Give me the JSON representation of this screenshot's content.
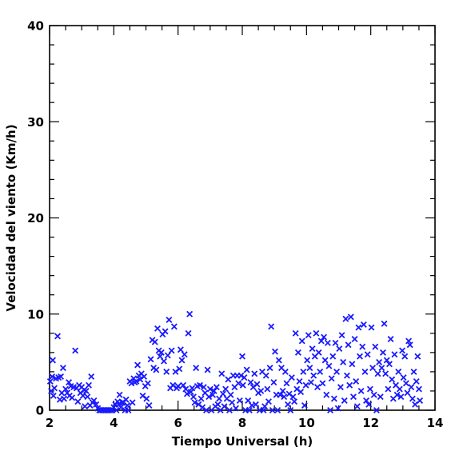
{
  "chart_data": {
    "type": "scatter",
    "xlabel": "Tiempo Universal (h)",
    "ylabel": "Velocidad del viento (Km/h)",
    "xlim": [
      2,
      14
    ],
    "ylim": [
      0,
      40
    ],
    "xticks": [
      2,
      4,
      6,
      8,
      10,
      12,
      14
    ],
    "yticks": [
      0,
      10,
      20,
      30,
      40
    ],
    "x_minor_step": 0.5,
    "y_minor_step": 2,
    "grid": false,
    "marker": "x",
    "color": "#1a1aff",
    "series": [
      {
        "points": [
          [
            2.02,
            3.0
          ],
          [
            2.05,
            2.0
          ],
          [
            2.08,
            3.5
          ],
          [
            2.1,
            5.2
          ],
          [
            2.12,
            1.5
          ],
          [
            2.15,
            2.3
          ],
          [
            2.2,
            3.3
          ],
          [
            2.25,
            7.7
          ],
          [
            2.28,
            3.4
          ],
          [
            2.32,
            1.1
          ],
          [
            2.35,
            3.5
          ],
          [
            2.38,
            1.8
          ],
          [
            2.42,
            4.4
          ],
          [
            2.45,
            1.2
          ],
          [
            2.5,
            2.2
          ],
          [
            2.55,
            1.8
          ],
          [
            2.6,
            2.9
          ],
          [
            2.62,
            1.5
          ],
          [
            2.66,
            2.5
          ],
          [
            2.7,
            1.3
          ],
          [
            2.75,
            2.4
          ],
          [
            2.8,
            6.2
          ],
          [
            2.84,
            2.3
          ],
          [
            2.88,
            0.9
          ],
          [
            2.92,
            2.6
          ],
          [
            2.96,
            1.8
          ],
          [
            3.0,
            2.4
          ],
          [
            3.04,
            1.5
          ],
          [
            3.08,
            2.1
          ],
          [
            3.1,
            0.4
          ],
          [
            3.14,
            2.0
          ],
          [
            3.18,
            1.4
          ],
          [
            3.22,
            2.6
          ],
          [
            3.26,
            0.5
          ],
          [
            3.3,
            3.5
          ],
          [
            3.34,
            0.8
          ],
          [
            3.38,
            1.0
          ],
          [
            3.45,
            0.6
          ],
          [
            3.5,
            0.2
          ],
          [
            3.55,
            0.0
          ],
          [
            3.6,
            0.0
          ],
          [
            3.65,
            0.0
          ],
          [
            3.7,
            0.0
          ],
          [
            3.75,
            0.0
          ],
          [
            3.8,
            0.0
          ],
          [
            3.85,
            0.0
          ],
          [
            3.9,
            0.0
          ],
          [
            3.95,
            0.0
          ],
          [
            4.0,
            0.3
          ],
          [
            4.05,
            0.6
          ],
          [
            4.08,
            0.0
          ],
          [
            4.12,
            0.9
          ],
          [
            4.15,
            0.6
          ],
          [
            4.18,
            1.6
          ],
          [
            4.22,
            0.3
          ],
          [
            4.26,
            0.8
          ],
          [
            4.3,
            0.8
          ],
          [
            4.35,
            0.0
          ],
          [
            4.38,
            1.1
          ],
          [
            4.42,
            0.5
          ],
          [
            4.45,
            0.0
          ],
          [
            4.5,
            3.0
          ],
          [
            4.55,
            2.8
          ],
          [
            4.58,
            0.8
          ],
          [
            4.62,
            3.3
          ],
          [
            4.65,
            2.9
          ],
          [
            4.7,
            3.0
          ],
          [
            4.74,
            4.7
          ],
          [
            4.78,
            3.6
          ],
          [
            4.82,
            3.2
          ],
          [
            4.86,
            3.8
          ],
          [
            4.9,
            1.5
          ],
          [
            4.94,
            3.5
          ],
          [
            4.98,
            2.5
          ],
          [
            5.02,
            1.2
          ],
          [
            5.06,
            2.8
          ],
          [
            5.1,
            0.5
          ],
          [
            5.15,
            5.3
          ],
          [
            5.2,
            7.3
          ],
          [
            5.24,
            4.4
          ],
          [
            5.28,
            7.1
          ],
          [
            5.32,
            4.2
          ],
          [
            5.36,
            8.5
          ],
          [
            5.4,
            6.2
          ],
          [
            5.44,
            5.6
          ],
          [
            5.48,
            6.0
          ],
          [
            5.52,
            7.9
          ],
          [
            5.56,
            5.1
          ],
          [
            5.6,
            8.2
          ],
          [
            5.64,
            4.0
          ],
          [
            5.68,
            5.7
          ],
          [
            5.72,
            9.4
          ],
          [
            5.76,
            2.3
          ],
          [
            5.8,
            6.2
          ],
          [
            5.84,
            2.6
          ],
          [
            5.88,
            8.7
          ],
          [
            5.92,
            4.0
          ],
          [
            5.96,
            2.3
          ],
          [
            6.0,
            2.5
          ],
          [
            6.04,
            4.3
          ],
          [
            6.08,
            6.3
          ],
          [
            6.12,
            5.2
          ],
          [
            6.16,
            2.6
          ],
          [
            6.2,
            5.8
          ],
          [
            6.24,
            2.2
          ],
          [
            6.28,
            1.7
          ],
          [
            6.32,
            8.0
          ],
          [
            6.36,
            10.0
          ],
          [
            6.4,
            1.9
          ],
          [
            6.44,
            2.3
          ],
          [
            6.48,
            1.4
          ],
          [
            6.52,
            0.8
          ],
          [
            6.56,
            4.4
          ],
          [
            6.6,
            2.5
          ],
          [
            6.64,
            0.6
          ],
          [
            6.68,
            2.6
          ],
          [
            6.72,
            1.2
          ],
          [
            6.76,
            0.3
          ],
          [
            6.8,
            2.4
          ],
          [
            6.84,
            1.8
          ],
          [
            6.88,
            0.0
          ],
          [
            6.92,
            4.2
          ],
          [
            6.96,
            1.4
          ],
          [
            7.0,
            2.2
          ],
          [
            7.04,
            0.0
          ],
          [
            7.08,
            1.6
          ],
          [
            7.12,
            2.0
          ],
          [
            7.16,
            0.4
          ],
          [
            7.2,
            2.4
          ],
          [
            7.24,
            0.6
          ],
          [
            7.28,
            1.2
          ],
          [
            7.32,
            0.0
          ],
          [
            7.36,
            3.8
          ],
          [
            7.4,
            1.7
          ],
          [
            7.44,
            0.4
          ],
          [
            7.48,
            2.2
          ],
          [
            7.52,
            1.2
          ],
          [
            7.56,
            3.2
          ],
          [
            7.6,
            0.0
          ],
          [
            7.64,
            1.6
          ],
          [
            7.68,
            0.8
          ],
          [
            7.72,
            3.6
          ],
          [
            7.76,
            2.4
          ],
          [
            7.8,
            0.2
          ],
          [
            7.84,
            3.6
          ],
          [
            7.88,
            2.8
          ],
          [
            7.92,
            1.0
          ],
          [
            7.96,
            3.6
          ],
          [
            8.0,
            5.6
          ],
          [
            8.02,
            2.6
          ],
          [
            8.06,
            3.4
          ],
          [
            8.1,
            0.0
          ],
          [
            8.14,
            4.2
          ],
          [
            8.18,
            1.0
          ],
          [
            8.22,
            0.0
          ],
          [
            8.26,
            2.9
          ],
          [
            8.3,
            0.5
          ],
          [
            8.34,
            2.4
          ],
          [
            8.38,
            3.8
          ],
          [
            8.42,
            0.6
          ],
          [
            8.46,
            2.7
          ],
          [
            8.5,
            1.8
          ],
          [
            8.54,
            0.0
          ],
          [
            8.58,
            2.0
          ],
          [
            8.62,
            4.0
          ],
          [
            8.66,
            0.0
          ],
          [
            8.7,
            0.4
          ],
          [
            8.74,
            3.6
          ],
          [
            8.78,
            2.2
          ],
          [
            8.82,
            0.9
          ],
          [
            8.86,
            4.4
          ],
          [
            8.9,
            8.7
          ],
          [
            8.94,
            0.0
          ],
          [
            8.98,
            2.9
          ],
          [
            9.02,
            6.1
          ],
          [
            9.06,
            1.6
          ],
          [
            9.1,
            0.0
          ],
          [
            9.14,
            5.2
          ],
          [
            9.18,
            1.6
          ],
          [
            9.22,
            4.4
          ],
          [
            9.26,
            2.0
          ],
          [
            9.3,
            1.4
          ],
          [
            9.34,
            4.0
          ],
          [
            9.38,
            2.8
          ],
          [
            9.42,
            0.6
          ],
          [
            9.46,
            1.7
          ],
          [
            9.5,
            0.0
          ],
          [
            9.54,
            3.4
          ],
          [
            9.58,
            1.4
          ],
          [
            9.62,
            0.9
          ],
          [
            9.66,
            8.0
          ],
          [
            9.7,
            2.2
          ],
          [
            9.74,
            6.0
          ],
          [
            9.78,
            3.0
          ],
          [
            9.82,
            1.9
          ],
          [
            9.86,
            7.2
          ],
          [
            9.9,
            4.0
          ],
          [
            9.94,
            0.5
          ],
          [
            9.98,
            2.6
          ],
          [
            10.02,
            5.2
          ],
          [
            10.06,
            7.8
          ],
          [
            10.1,
            4.4
          ],
          [
            10.14,
            2.9
          ],
          [
            10.18,
            6.4
          ],
          [
            10.22,
            3.6
          ],
          [
            10.26,
            5.6
          ],
          [
            10.3,
            8.0
          ],
          [
            10.34,
            2.4
          ],
          [
            10.38,
            6.0
          ],
          [
            10.42,
            4.0
          ],
          [
            10.46,
            7.2
          ],
          [
            10.5,
            2.8
          ],
          [
            10.54,
            7.6
          ],
          [
            10.58,
            5.2
          ],
          [
            10.62,
            1.6
          ],
          [
            10.66,
            7.0
          ],
          [
            10.7,
            4.6
          ],
          [
            10.74,
            0.0
          ],
          [
            10.78,
            3.3
          ],
          [
            10.82,
            5.6
          ],
          [
            10.86,
            1.2
          ],
          [
            10.9,
            7.0
          ],
          [
            10.94,
            4.0
          ],
          [
            10.98,
            0.2
          ],
          [
            11.02,
            6.4
          ],
          [
            11.06,
            2.4
          ],
          [
            11.1,
            7.8
          ],
          [
            11.14,
            5.0
          ],
          [
            11.18,
            1.0
          ],
          [
            11.22,
            9.5
          ],
          [
            11.26,
            3.6
          ],
          [
            11.3,
            6.8
          ],
          [
            11.34,
            2.6
          ],
          [
            11.38,
            9.7
          ],
          [
            11.42,
            4.8
          ],
          [
            11.46,
            1.4
          ],
          [
            11.5,
            7.4
          ],
          [
            11.54,
            3.0
          ],
          [
            11.58,
            0.4
          ],
          [
            11.62,
            8.6
          ],
          [
            11.66,
            5.6
          ],
          [
            11.7,
            2.0
          ],
          [
            11.74,
            6.6
          ],
          [
            11.78,
            8.9
          ],
          [
            11.82,
            4.0
          ],
          [
            11.86,
            1.0
          ],
          [
            11.9,
            5.8
          ],
          [
            11.94,
            0.6
          ],
          [
            11.98,
            2.2
          ],
          [
            12.02,
            8.6
          ],
          [
            12.06,
            4.4
          ],
          [
            12.1,
            1.6
          ],
          [
            12.14,
            6.6
          ],
          [
            12.18,
            0.0
          ],
          [
            12.22,
            3.8
          ],
          [
            12.26,
            5.0
          ],
          [
            12.3,
            1.4
          ],
          [
            12.34,
            4.4
          ],
          [
            12.38,
            6.0
          ],
          [
            12.42,
            9.0
          ],
          [
            12.46,
            3.8
          ],
          [
            12.5,
            5.2
          ],
          [
            12.54,
            2.2
          ],
          [
            12.58,
            4.8
          ],
          [
            12.62,
            7.4
          ],
          [
            12.66,
            3.2
          ],
          [
            12.7,
            1.2
          ],
          [
            12.74,
            5.8
          ],
          [
            12.78,
            2.6
          ],
          [
            12.82,
            1.6
          ],
          [
            12.86,
            4.0
          ],
          [
            12.9,
            2.2
          ],
          [
            12.94,
            1.4
          ],
          [
            12.98,
            6.2
          ],
          [
            13.02,
            3.4
          ],
          [
            13.06,
            5.6
          ],
          [
            13.1,
            2.8
          ],
          [
            13.14,
            1.8
          ],
          [
            13.18,
            7.2
          ],
          [
            13.22,
            6.8
          ],
          [
            13.26,
            2.4
          ],
          [
            13.3,
            1.2
          ],
          [
            13.34,
            4.0
          ],
          [
            13.38,
            0.6
          ],
          [
            13.42,
            3.0
          ],
          [
            13.46,
            5.6
          ],
          [
            13.5,
            2.2
          ],
          [
            13.53,
            1.0
          ]
        ]
      }
    ]
  }
}
